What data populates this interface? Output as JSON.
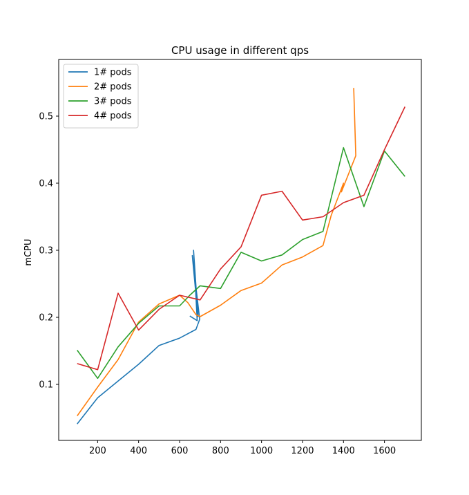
{
  "chart_data": {
    "type": "line",
    "title": "CPU usage in different qps",
    "xlabel": "",
    "ylabel": "mCPU",
    "xlim": [
      10,
      1780
    ],
    "ylim": [
      0.0165,
      0.5845
    ],
    "xticks": [
      200,
      400,
      600,
      800,
      1000,
      1200,
      1400,
      1600
    ],
    "yticks": [
      0.1,
      0.2,
      0.3,
      0.4,
      0.5
    ],
    "xtick_labels": [
      "200",
      "400",
      "600",
      "800",
      "1000",
      "1200",
      "1400",
      "1600"
    ],
    "ytick_labels": [
      "0.1",
      "0.2",
      "0.3",
      "0.4",
      "0.5"
    ],
    "legend_position": "upper-left",
    "series": [
      {
        "name": "1# pods",
        "color": "#1f77b4",
        "points": [
          [
            100,
            0.041
          ],
          [
            200,
            0.08
          ],
          [
            300,
            0.105
          ],
          [
            400,
            0.13
          ],
          [
            500,
            0.158
          ],
          [
            600,
            0.169
          ],
          [
            680,
            0.182
          ],
          [
            698,
            0.197
          ],
          [
            662,
            0.292
          ],
          [
            690,
            0.201
          ],
          [
            668,
            0.3
          ],
          [
            686,
            0.195
          ],
          [
            650,
            0.202
          ]
        ]
      },
      {
        "name": "2# pods",
        "color": "#ff7f0e",
        "points": [
          [
            100,
            0.053
          ],
          [
            200,
            0.096
          ],
          [
            300,
            0.137
          ],
          [
            400,
            0.193
          ],
          [
            500,
            0.22
          ],
          [
            600,
            0.233
          ],
          [
            640,
            0.222
          ],
          [
            680,
            0.204
          ],
          [
            700,
            0.201
          ],
          [
            800,
            0.218
          ],
          [
            900,
            0.24
          ],
          [
            1000,
            0.251
          ],
          [
            1100,
            0.278
          ],
          [
            1200,
            0.29
          ],
          [
            1300,
            0.307
          ],
          [
            1340,
            0.352
          ],
          [
            1400,
            0.4
          ],
          [
            1390,
            0.387
          ],
          [
            1460,
            0.441
          ],
          [
            1450,
            0.542
          ]
        ]
      },
      {
        "name": "3# pods",
        "color": "#2ca02c",
        "points": [
          [
            100,
            0.151
          ],
          [
            200,
            0.109
          ],
          [
            300,
            0.156
          ],
          [
            400,
            0.191
          ],
          [
            500,
            0.217
          ],
          [
            600,
            0.217
          ],
          [
            650,
            0.233
          ],
          [
            700,
            0.247
          ],
          [
            800,
            0.243
          ],
          [
            900,
            0.297
          ],
          [
            1000,
            0.284
          ],
          [
            1100,
            0.293
          ],
          [
            1200,
            0.316
          ],
          [
            1300,
            0.328
          ],
          [
            1400,
            0.453
          ],
          [
            1500,
            0.365
          ],
          [
            1600,
            0.448
          ],
          [
            1700,
            0.41
          ]
        ]
      },
      {
        "name": "4# pods",
        "color": "#d62728",
        "points": [
          [
            100,
            0.131
          ],
          [
            200,
            0.122
          ],
          [
            300,
            0.236
          ],
          [
            400,
            0.181
          ],
          [
            500,
            0.212
          ],
          [
            600,
            0.233
          ],
          [
            700,
            0.226
          ],
          [
            800,
            0.272
          ],
          [
            900,
            0.305
          ],
          [
            1000,
            0.382
          ],
          [
            1100,
            0.388
          ],
          [
            1200,
            0.345
          ],
          [
            1300,
            0.35
          ],
          [
            1400,
            0.371
          ],
          [
            1500,
            0.382
          ],
          [
            1600,
            0.45
          ],
          [
            1700,
            0.514
          ]
        ]
      }
    ]
  }
}
